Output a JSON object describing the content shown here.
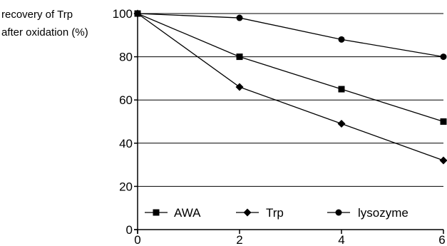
{
  "chart_data": {
    "type": "line",
    "title": "",
    "xlabel": "",
    "ylabel_lines": [
      "recovery of Trp",
      "after oxidation (%)"
    ],
    "x": [
      0,
      2,
      4,
      6
    ],
    "xlim": [
      0,
      6
    ],
    "ylim": [
      0,
      100
    ],
    "xticks": [
      0,
      2,
      4,
      6
    ],
    "yticks": [
      0,
      20,
      40,
      60,
      80,
      100
    ],
    "grid": "horizontal",
    "legend_position": "inside-bottom",
    "series": [
      {
        "name": "AWA",
        "marker": "square",
        "values": [
          100,
          80,
          65,
          50
        ]
      },
      {
        "name": "Trp",
        "marker": "diamond",
        "values": [
          100,
          66,
          49,
          32
        ]
      },
      {
        "name": "lysozyme",
        "marker": "circle",
        "values": [
          100,
          98,
          88,
          80
        ]
      }
    ],
    "colors": {
      "line": "#000000",
      "grid": "#000000",
      "background": "#ffffff"
    }
  }
}
